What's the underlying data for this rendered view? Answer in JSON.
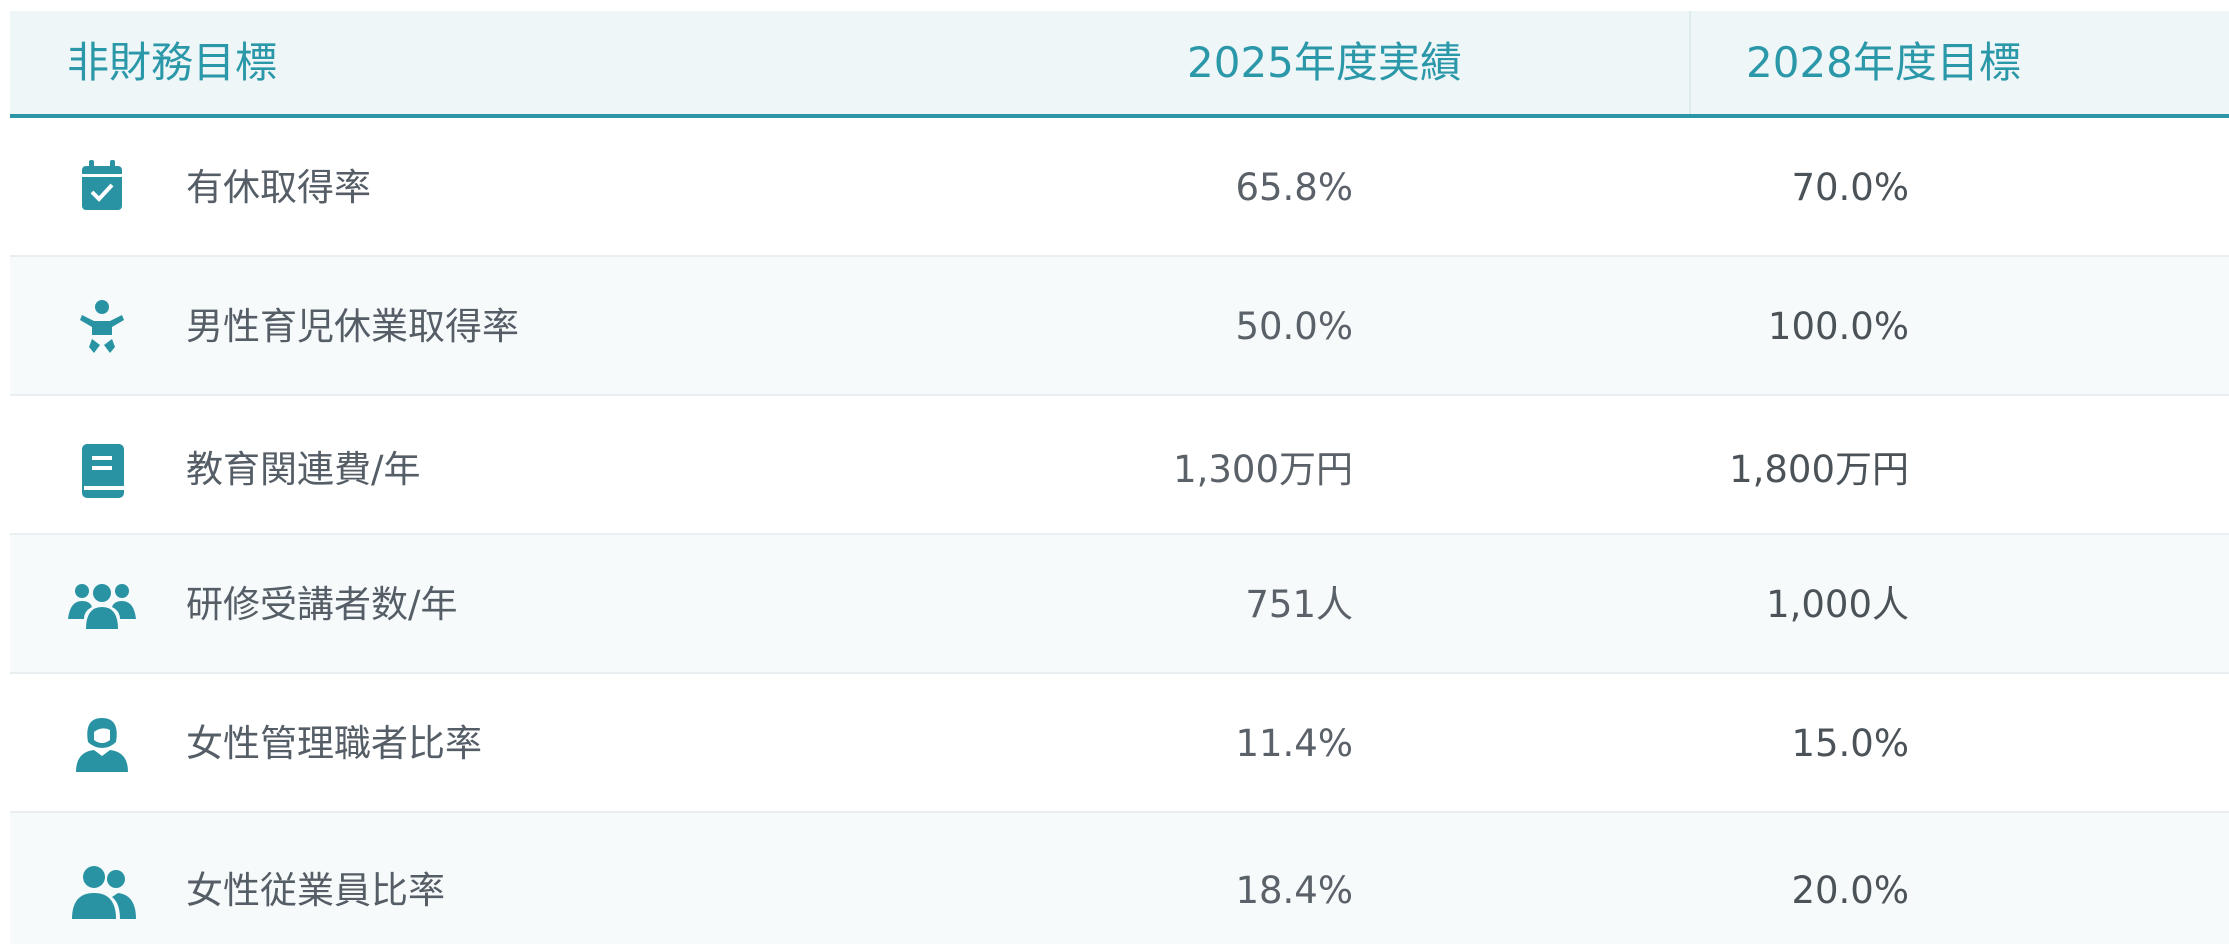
{
  "table": {
    "header": [
      "非財務目標",
      "2025年度実績",
      "2028年度目標"
    ],
    "rows": [
      [
        "有休取得率",
        "65.8%",
        "70.0%"
      ],
      [
        "男性育児休業取得率",
        "50.0%",
        "100.0%"
      ],
      [
        "教育関連費/年",
        "1,300万円",
        "1,800万円"
      ],
      [
        "研修受講者数/年",
        "751人",
        "1,000人"
      ],
      [
        "女性管理職者比率",
        "11.4%",
        "15.0%"
      ],
      [
        "女性従業員比率",
        "18.4%",
        "20.0%"
      ]
    ]
  }
}
